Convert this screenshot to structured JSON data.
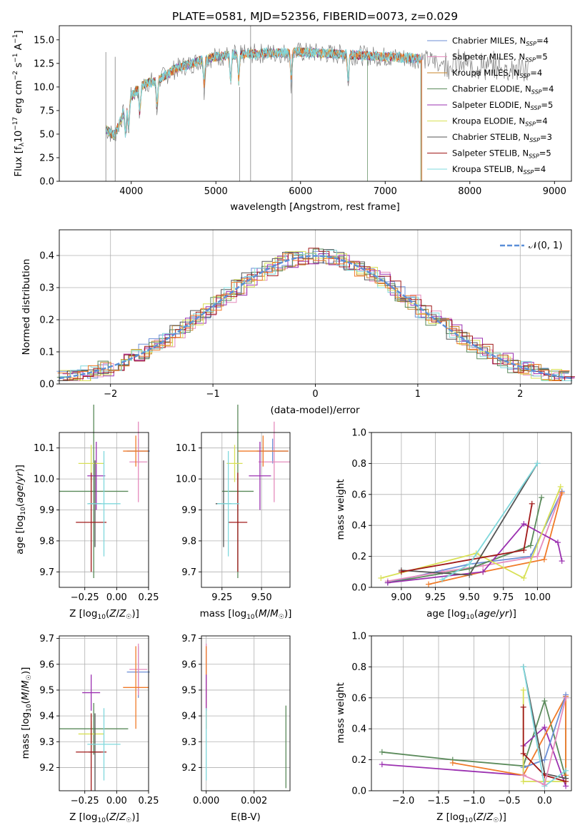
{
  "colors": {
    "c_chab_miles": "#6b8ed6",
    "c_salp_miles": "#e58bbd",
    "c_krou_miles": "#c8862a",
    "c_chab_elodie": "#5a8a5a",
    "c_salp_elodie": "#9b30b0",
    "c_krou_elodie": "#d8e055",
    "c_chab_stelib": "#555555",
    "c_salp_stelib": "#a01818",
    "c_krou_stelib": "#7fd8dc",
    "c_orange": "#f07a28",
    "c_norm": "#5b8fd8"
  },
  "chart_data": [
    {
      "id": "spectrum",
      "type": "line",
      "title": "PLATE=0581, MJD=52356, FIBERID=0073, z=0.029",
      "xlabel": "wavelength [Angstrom, rest frame]",
      "ylabel": "Flux [f_λ 10^-17 erg cm^-2 s^-1 A^-1]",
      "xlim": [
        3150,
        9200
      ],
      "ylim": [
        0,
        16.5
      ],
      "xticks": [
        "4000",
        "5000",
        "6000",
        "7000",
        "8000",
        "9000"
      ],
      "yticks": [
        "0.0",
        "2.5",
        "5.0",
        "7.5",
        "10.0",
        "12.5",
        "15.0"
      ],
      "legend_position": "right",
      "series": [
        {
          "name": "Chabrier MILES, N_SSP=4",
          "label": "Chabrier MILES, N",
          "sub": "SSP",
          "tail": "=4",
          "color_key": "c_chab_miles"
        },
        {
          "name": "Salpeter MILES, N_SSP=5",
          "label": "Salpeter MILES, N",
          "sub": "SSP",
          "tail": "=5",
          "color_key": "c_salp_miles"
        },
        {
          "name": "Kroupa MILES, N_SSP=4",
          "label": "Kroupa MILES, N",
          "sub": "SSP",
          "tail": "=4",
          "color_key": "c_krou_miles"
        },
        {
          "name": "Chabrier ELODIE, N_SSP=4",
          "label": "Chabrier ELODIE, N",
          "sub": "SSP",
          "tail": "=4",
          "color_key": "c_chab_elodie"
        },
        {
          "name": "Salpeter ELODIE, N_SSP=5",
          "label": "Salpeter ELODIE, N",
          "sub": "SSP",
          "tail": "=5",
          "color_key": "c_salp_elodie"
        },
        {
          "name": "Kroupa ELODIE, N_SSP=4",
          "label": "Kroupa ELODIE, N",
          "sub": "SSP",
          "tail": "=4",
          "color_key": "c_krou_elodie"
        },
        {
          "name": "Chabrier STELIB, N_SSP=3",
          "label": "Chabrier STELIB, N",
          "sub": "SSP",
          "tail": "=3",
          "color_key": "c_chab_stelib"
        },
        {
          "name": "Salpeter STELIB, N_SSP=5",
          "label": "Salpeter STELIB, N",
          "sub": "SSP",
          "tail": "=5",
          "color_key": "c_salp_stelib"
        },
        {
          "name": "Kroupa STELIB, N_SSP=4",
          "label": "Kroupa STELIB, N",
          "sub": "SSP",
          "tail": "=4",
          "color_key": "c_krou_stelib"
        }
      ],
      "continuum_wavelength": [
        3700,
        3800,
        3900,
        4000,
        4100,
        4200,
        4300,
        4400,
        4500,
        4600,
        4700,
        4800,
        5000,
        5200,
        5400,
        5600,
        5800,
        6000,
        6200,
        6400,
        6600,
        6800,
        7000,
        7200,
        7400
      ],
      "continuum_flux": [
        5.5,
        4.8,
        7.0,
        9.0,
        10.0,
        10.5,
        10.6,
        11.2,
        11.8,
        12.2,
        12.4,
        12.8,
        13.2,
        13.4,
        13.5,
        13.6,
        13.6,
        13.7,
        13.6,
        13.5,
        13.4,
        13.3,
        13.2,
        13.1,
        13.0
      ],
      "data_extra_wavelength": [
        7450,
        7600,
        7800,
        8000,
        8200,
        8400,
        8600,
        8700
      ],
      "data_extra_flux": [
        12.9,
        12.7,
        12.5,
        12.3,
        12.2,
        12.0,
        11.9,
        11.8
      ]
    },
    {
      "id": "residuals",
      "type": "histogram",
      "xlabel": "(data-model)/error",
      "ylabel": "Normed distribution",
      "xlim": [
        -2.5,
        2.5
      ],
      "ylim": [
        0,
        0.48
      ],
      "xticks": [
        "−2",
        "−1",
        "0",
        "1",
        "2"
      ],
      "yticks": [
        "0.0",
        "0.1",
        "0.2",
        "0.3",
        "0.4"
      ],
      "legend_label": "𝒩(0, 1)",
      "legend_position": "top-right",
      "bin_width": 0.1
    },
    {
      "id": "age_vs_Z",
      "type": "scatter",
      "xlabel": "Z [log₁₀(Z/Z☉)]",
      "ylabel": "age  [log₁₀(age/yr)]",
      "xlim": [
        -0.45,
        0.25
      ],
      "ylim": [
        9.65,
        10.15
      ],
      "xticks": [
        "−0.25",
        "0.00",
        "0.25"
      ],
      "yticks": [
        "9.7",
        "9.8",
        "9.9",
        "10.0",
        "10.1"
      ],
      "points": [
        {
          "color_key": "c_chab_miles",
          "x": 0.17,
          "xerr": 0.09,
          "y": 10.09,
          "yerr": 0.04
        },
        {
          "color_key": "c_salp_miles",
          "x": 0.17,
          "xerr": 0.07,
          "y": 10.055,
          "yerr": 0.13
        },
        {
          "color_key": "c_orange",
          "x": 0.15,
          "xerr": 0.1,
          "y": 10.09,
          "yerr": 0.05
        },
        {
          "color_key": "c_chab_elodie",
          "x": -0.18,
          "xerr": 0.27,
          "y": 9.96,
          "yerr": 0.28
        },
        {
          "color_key": "c_salp_elodie",
          "x": -0.16,
          "xerr": 0.07,
          "y": 10.01,
          "yerr": 0.11
        },
        {
          "color_key": "c_krou_elodie",
          "x": -0.2,
          "xerr": 0.1,
          "y": 10.05,
          "yerr": 0.06
        },
        {
          "color_key": "c_chab_stelib",
          "x": -0.17,
          "xerr": 0.05,
          "y": 9.92,
          "yerr": 0.14
        },
        {
          "color_key": "c_salp_stelib",
          "x": -0.2,
          "xerr": 0.12,
          "y": 9.86,
          "yerr": 0.16
        },
        {
          "color_key": "c_krou_stelib",
          "x": -0.1,
          "xerr": 0.13,
          "y": 9.92,
          "yerr": 0.17
        }
      ]
    },
    {
      "id": "age_vs_mass",
      "type": "scatter",
      "xlabel": "mass [log₁₀(M/M☉)]",
      "xlim": [
        9.12,
        9.68
      ],
      "ylim": [
        9.65,
        10.15
      ],
      "xticks": [
        "9.25",
        "9.50"
      ],
      "yticks": [
        "9.7",
        "9.8",
        "9.9",
        "10.0",
        "10.1"
      ],
      "points": [
        {
          "color_key": "c_chab_miles",
          "x": 9.57,
          "xerr": 0.1,
          "y": 10.09,
          "yerr": 0.04
        },
        {
          "color_key": "c_salp_miles",
          "x": 9.58,
          "xerr": 0.1,
          "y": 10.055,
          "yerr": 0.13
        },
        {
          "color_key": "c_orange",
          "x": 9.51,
          "xerr": 0.16,
          "y": 10.09,
          "yerr": 0.05
        },
        {
          "color_key": "c_chab_elodie",
          "x": 9.35,
          "xerr": 0.1,
          "y": 9.96,
          "yerr": 0.28
        },
        {
          "color_key": "c_salp_elodie",
          "x": 9.49,
          "xerr": 0.07,
          "y": 10.01,
          "yerr": 0.11
        },
        {
          "color_key": "c_krou_elodie",
          "x": 9.33,
          "xerr": 0.05,
          "y": 10.05,
          "yerr": 0.06
        },
        {
          "color_key": "c_chab_stelib",
          "x": 9.26,
          "xerr": 0.05,
          "y": 9.92,
          "yerr": 0.14
        },
        {
          "color_key": "c_salp_stelib",
          "x": 9.35,
          "xerr": 0.06,
          "y": 9.86,
          "yerr": 0.16
        },
        {
          "color_key": "c_krou_stelib",
          "x": 9.29,
          "xerr": 0.07,
          "y": 9.92,
          "yerr": 0.17
        }
      ]
    },
    {
      "id": "weight_vs_age",
      "type": "line",
      "xlabel": "age  [log₁₀(age/yr)]",
      "ylabel": "mass weight",
      "xlim": [
        8.78,
        10.25
      ],
      "ylim": [
        0,
        1
      ],
      "xticks": [
        "9.00",
        "9.25",
        "9.50",
        "9.75",
        "10.00"
      ],
      "yticks": [
        "0.0",
        "0.2",
        "0.4",
        "0.6",
        "0.8",
        "1.0"
      ],
      "series": [
        {
          "color_key": "c_chab_miles",
          "x": [
            8.9,
            9.5,
            9.95,
            10.18
          ],
          "y": [
            0.03,
            0.15,
            0.2,
            0.62
          ]
        },
        {
          "color_key": "c_salp_miles",
          "x": [
            8.9,
            9.3,
            9.6,
            10.0,
            10.17
          ],
          "y": [
            0.04,
            0.1,
            0.14,
            0.2,
            0.6
          ]
        },
        {
          "color_key": "c_orange",
          "x": [
            9.2,
            9.6,
            10.05,
            10.18
          ],
          "y": [
            0.02,
            0.1,
            0.18,
            0.61
          ]
        },
        {
          "color_key": "c_chab_elodie",
          "x": [
            8.9,
            9.5,
            9.95,
            10.03
          ],
          "y": [
            0.03,
            0.12,
            0.27,
            0.58
          ]
        },
        {
          "color_key": "c_salp_elodie",
          "x": [
            8.9,
            9.6,
            9.9,
            10.15,
            10.18
          ],
          "y": [
            0.03,
            0.1,
            0.41,
            0.29,
            0.17
          ]
        },
        {
          "color_key": "c_krou_elodie",
          "x": [
            8.85,
            9.55,
            9.9,
            10.17
          ],
          "y": [
            0.06,
            0.22,
            0.06,
            0.65
          ]
        },
        {
          "color_key": "c_chab_stelib",
          "x": [
            9.0,
            9.5,
            10.0
          ],
          "y": [
            0.11,
            0.08,
            0.8
          ]
        },
        {
          "color_key": "c_salp_stelib",
          "x": [
            9.0,
            9.9,
            9.96
          ],
          "y": [
            0.1,
            0.24,
            0.54
          ]
        },
        {
          "color_key": "c_krou_stelib",
          "x": [
            9.3,
            9.5,
            10.0
          ],
          "y": [
            0.05,
            0.15,
            0.8
          ]
        }
      ]
    },
    {
      "id": "mass_vs_Z",
      "type": "scatter",
      "xlabel": "Z [log₁₀(Z/Z☉)]",
      "ylabel": "mass [log₁₀(M/M☉)]",
      "xlim": [
        -0.45,
        0.25
      ],
      "ylim": [
        9.11,
        9.71
      ],
      "xticks": [
        "−0.25",
        "0.00",
        "0.25"
      ],
      "yticks": [
        "9.2",
        "9.3",
        "9.4",
        "9.5",
        "9.6",
        "9.7"
      ],
      "points": [
        {
          "color_key": "c_chab_miles",
          "x": 0.17,
          "xerr": 0.09,
          "y": 9.57,
          "yerr": 0.1
        },
        {
          "color_key": "c_salp_miles",
          "x": 0.17,
          "xerr": 0.07,
          "y": 9.58,
          "yerr": 0.1
        },
        {
          "color_key": "c_orange",
          "x": 0.15,
          "xerr": 0.1,
          "y": 9.51,
          "yerr": 0.16
        },
        {
          "color_key": "c_chab_elodie",
          "x": -0.18,
          "xerr": 0.27,
          "y": 9.35,
          "yerr": 0.1
        },
        {
          "color_key": "c_salp_elodie",
          "x": -0.2,
          "xerr": 0.07,
          "y": 9.49,
          "yerr": 0.07
        },
        {
          "color_key": "c_krou_elodie",
          "x": -0.2,
          "xerr": 0.1,
          "y": 9.33,
          "yerr": 0.05
        },
        {
          "color_key": "c_chab_stelib",
          "x": -0.17,
          "xerr": 0.05,
          "y": 9.26,
          "yerr": 0.15
        },
        {
          "color_key": "c_salp_stelib",
          "x": -0.2,
          "xerr": 0.12,
          "y": 9.26,
          "yerr": 0.15
        },
        {
          "color_key": "c_krou_stelib",
          "x": -0.1,
          "xerr": 0.13,
          "y": 9.29,
          "yerr": 0.14
        }
      ]
    },
    {
      "id": "mass_vs_ebv",
      "type": "scatter",
      "xlabel": "E(B-V)",
      "xlim": [
        -0.0002,
        0.0035
      ],
      "ylim": [
        9.11,
        9.71
      ],
      "xticks": [
        "0.000",
        "0.002"
      ],
      "yticks": [
        "9.2",
        "9.3",
        "9.4",
        "9.5",
        "9.6",
        "9.7"
      ],
      "points": [
        {
          "color_key": "c_chab_miles",
          "x": 0.0,
          "y": 9.57,
          "yerr": 0.1
        },
        {
          "color_key": "c_salp_miles",
          "x": 0.0,
          "y": 9.58,
          "yerr": 0.1
        },
        {
          "color_key": "c_orange",
          "x": 0.0,
          "y": 9.51,
          "yerr": 0.16
        },
        {
          "color_key": "c_salp_elodie",
          "x": 0.0,
          "y": 9.49,
          "yerr": 0.07
        },
        {
          "color_key": "c_krou_stelib",
          "x": 0.0,
          "y": 9.29,
          "yerr": 0.14
        },
        {
          "color_key": "c_chab_elodie",
          "x": 0.00333,
          "y": 9.28,
          "yerr": 0.16
        }
      ]
    },
    {
      "id": "weight_vs_Z",
      "type": "line",
      "xlabel": "Z [log₁₀(Z/Z☉)]",
      "ylabel": "mass weight",
      "xlim": [
        -2.45,
        0.38
      ],
      "ylim": [
        0,
        1
      ],
      "xticks": [
        "−2.0",
        "−1.5",
        "−1.0",
        "−0.5",
        "0.0"
      ],
      "yticks": [
        "0.0",
        "0.2",
        "0.4",
        "0.6",
        "0.8",
        "1.0"
      ],
      "series": [
        {
          "color_key": "c_chab_elodie",
          "x": [
            -2.3,
            -1.3,
            -0.3,
            0.0,
            0.3,
            0.3
          ],
          "y": [
            0.25,
            0.2,
            0.16,
            0.58,
            0.08,
            0.61
          ]
        },
        {
          "color_key": "c_salp_elodie",
          "x": [
            -2.3,
            -0.3,
            -0.3,
            0.0,
            0.3
          ],
          "y": [
            0.17,
            0.1,
            0.29,
            0.41,
            0.03
          ]
        },
        {
          "color_key": "c_orange",
          "x": [
            -1.3,
            -0.3,
            0.3,
            0.3
          ],
          "y": [
            0.18,
            0.1,
            0.61,
            0.1
          ]
        },
        {
          "color_key": "c_chab_miles",
          "x": [
            -0.3,
            0.0,
            0.3
          ],
          "y": [
            0.15,
            0.2,
            0.62
          ]
        },
        {
          "color_key": "c_krou_elodie",
          "x": [
            -0.3,
            -0.3,
            0.0,
            0.3
          ],
          "y": [
            0.65,
            0.06,
            0.06,
            0.06
          ]
        },
        {
          "color_key": "c_chab_stelib",
          "x": [
            -0.3,
            0.0,
            0.3
          ],
          "y": [
            0.8,
            0.11,
            0.08
          ]
        },
        {
          "color_key": "c_salp_stelib",
          "x": [
            -0.3,
            -0.3,
            0.0,
            0.3
          ],
          "y": [
            0.54,
            0.24,
            0.1,
            0.06
          ]
        },
        {
          "color_key": "c_krou_stelib",
          "x": [
            -0.3,
            0.0,
            0.3
          ],
          "y": [
            0.8,
            0.03,
            0.13
          ]
        },
        {
          "color_key": "c_salp_miles",
          "x": [
            -0.3,
            0.0,
            0.3
          ],
          "y": [
            0.1,
            0.04,
            0.6
          ]
        }
      ]
    }
  ]
}
